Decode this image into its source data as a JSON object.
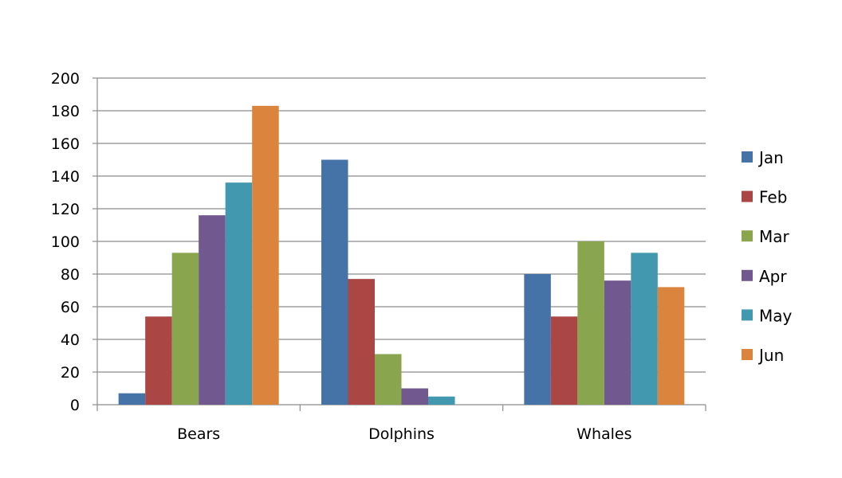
{
  "chart_data": {
    "type": "bar",
    "categories": [
      "Bears",
      "Dolphins",
      "Whales"
    ],
    "series": [
      {
        "name": "Jan",
        "color": "#4572a7",
        "values": [
          7,
          150,
          80
        ]
      },
      {
        "name": "Feb",
        "color": "#aa4643",
        "values": [
          54,
          77,
          54
        ]
      },
      {
        "name": "Mar",
        "color": "#89a54e",
        "values": [
          93,
          31,
          100
        ]
      },
      {
        "name": "Apr",
        "color": "#71588f",
        "values": [
          116,
          10,
          76
        ]
      },
      {
        "name": "May",
        "color": "#4198af",
        "values": [
          136,
          5,
          93
        ]
      },
      {
        "name": "Jun",
        "color": "#db843d",
        "values": [
          183,
          0,
          72
        ]
      }
    ],
    "ylim": [
      0,
      200
    ],
    "yticks": [
      0,
      20,
      40,
      60,
      80,
      100,
      120,
      140,
      160,
      180,
      200
    ],
    "grid": true,
    "legend": "right"
  }
}
